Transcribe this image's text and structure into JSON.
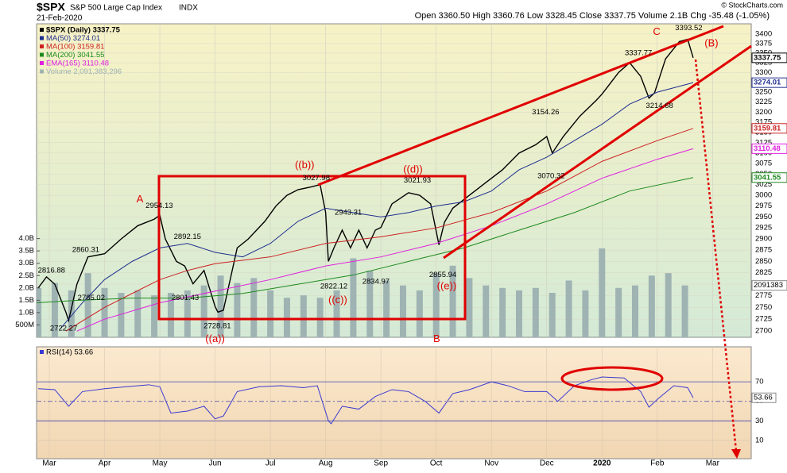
{
  "header": {
    "symbol": "$SPX",
    "name": "S&P 500 Large Cap Index",
    "exchange": "INDX",
    "date": "21-Feb-2020",
    "quote": "Open 3360.50  High 3360.76  Low 3328.45  Close 3337.75  Volume 2.1B  Chg -35.48 (-1.05%)",
    "credit": "© StockCharts.com"
  },
  "chart_data": [
    {
      "type": "line",
      "log_scale": true,
      "grid": true,
      "xlim": [
        2.77,
        15.7
      ],
      "xticks": [
        {
          "value": 3,
          "label": "Mar"
        },
        {
          "value": 4,
          "label": "Apr"
        },
        {
          "value": 5,
          "label": "May"
        },
        {
          "value": 6,
          "label": "Jun"
        },
        {
          "value": 7,
          "label": "Jul"
        },
        {
          "value": 8,
          "label": "Aug"
        },
        {
          "value": 9,
          "label": "Sep"
        },
        {
          "value": 10,
          "label": "Oct"
        },
        {
          "value": 11,
          "label": "Nov"
        },
        {
          "value": 12,
          "label": "Dec"
        },
        {
          "value": 13,
          "label": "2020"
        },
        {
          "value": 14,
          "label": "Feb"
        },
        {
          "value": 15,
          "label": "Mar"
        }
      ],
      "ylim": [
        2687,
        3427
      ],
      "yticks": [
        2700,
        2725,
        2750,
        2775,
        2800,
        2825,
        2850,
        2875,
        2900,
        2925,
        2950,
        2975,
        3000,
        3025,
        3050,
        3075,
        3100,
        3125,
        3150,
        3175,
        3200,
        3225,
        3250,
        3275,
        3300,
        3325,
        3350,
        3375,
        3400
      ],
      "y2lim": [
        0,
        12.7
      ],
      "y2ticks": [
        {
          "value": 0.5,
          "label": "500M"
        },
        {
          "value": 1,
          "label": "1.0B"
        },
        {
          "value": 1.5,
          "label": "1.5B"
        },
        {
          "value": 2,
          "label": "2.0B"
        },
        {
          "value": 2.5,
          "label": "2.5B"
        },
        {
          "value": 3,
          "label": "3.0B"
        },
        {
          "value": 3.5,
          "label": "3.5B"
        },
        {
          "value": 4,
          "label": "4.0B"
        }
      ],
      "series": [
        {
          "name": "$SPX (Daily) 3337.75",
          "color": "#000000",
          "width": 1.4,
          "x": [
            2.8,
            2.95,
            3.1,
            3.3,
            3.35,
            3.5,
            3.7,
            4.0,
            4.3,
            4.6,
            4.9,
            5.0,
            5.1,
            5.3,
            5.45,
            5.6,
            5.8,
            6.0,
            6.05,
            6.15,
            6.4,
            6.6,
            6.9,
            7.1,
            7.3,
            7.5,
            7.75,
            7.9,
            8.0,
            8.05,
            8.15,
            8.3,
            8.45,
            8.6,
            8.75,
            8.9,
            9.0,
            9.2,
            9.5,
            9.7,
            9.9,
            10.05,
            10.15,
            10.3,
            10.6,
            10.9,
            11.2,
            11.5,
            11.8,
            12.0,
            12.1,
            12.3,
            12.6,
            12.9,
            13.0,
            13.3,
            13.5,
            13.7,
            13.85,
            13.95,
            14.15,
            14.4,
            14.55,
            14.65
          ],
          "values": [
            2792,
            2816,
            2800,
            2740,
            2722,
            2800,
            2860,
            2867,
            2900,
            2930,
            2945,
            2954,
            2900,
            2850,
            2840,
            2801,
            2830,
            2752,
            2740,
            2744,
            2880,
            2900,
            2940,
            2975,
            3000,
            3013,
            3020,
            3025,
            2960,
            2850,
            2880,
            2920,
            2880,
            2920,
            2880,
            2920,
            2926,
            2980,
            3006,
            3000,
            2980,
            2887,
            2938,
            2970,
            3000,
            3030,
            3060,
            3100,
            3120,
            3140,
            3100,
            3140,
            3190,
            3230,
            3245,
            3300,
            3325,
            3290,
            3235,
            3248,
            3335,
            3380,
            3386,
            3337.75
          ]
        },
        {
          "name": "MA(50) 3274.01",
          "color": "#1f2f8f",
          "width": 1,
          "x": [
            3.2,
            3.6,
            4.0,
            4.5,
            5.0,
            5.5,
            6.0,
            6.5,
            7.0,
            7.5,
            8.0,
            8.5,
            9.0,
            9.5,
            10.0,
            10.5,
            11.0,
            11.5,
            12.0,
            12.5,
            13.0,
            13.5,
            14.0,
            14.65
          ],
          "values": [
            2705,
            2760,
            2810,
            2850,
            2880,
            2890,
            2870,
            2860,
            2890,
            2940,
            2970,
            2960,
            2950,
            2960,
            2975,
            2985,
            3010,
            3060,
            3090,
            3130,
            3170,
            3220,
            3250,
            3274.01
          ]
        },
        {
          "name": "MA(100) 3159.81",
          "color": "#cc2222",
          "width": 1,
          "x": [
            3.3,
            4.0,
            4.5,
            5.0,
            5.5,
            6.0,
            7.0,
            8.0,
            9.0,
            10.0,
            11.0,
            12.0,
            13.0,
            14.0,
            14.65
          ],
          "values": [
            2700,
            2750,
            2780,
            2810,
            2830,
            2845,
            2860,
            2890,
            2905,
            2925,
            2960,
            3010,
            3080,
            3130,
            3159.81
          ]
        },
        {
          "name": "MA(200) 3041.55",
          "color": "#1e8a1e",
          "width": 1,
          "x": [
            2.77,
            3.5,
            4.5,
            5.5,
            6.5,
            7.5,
            8.5,
            9.5,
            10.5,
            11.5,
            12.5,
            13.5,
            14.65
          ],
          "values": [
            2760,
            2765,
            2770,
            2770,
            2780,
            2800,
            2820,
            2850,
            2880,
            2920,
            2960,
            3010,
            3041.55
          ]
        },
        {
          "name": "EMA(165) 3110.48",
          "color": "#e020e0",
          "width": 1,
          "x": [
            3.5,
            4.0,
            5.0,
            6.0,
            7.0,
            8.0,
            9.0,
            10.0,
            11.0,
            12.0,
            13.0,
            14.0,
            14.65
          ],
          "values": [
            2700,
            2725,
            2760,
            2785,
            2810,
            2840,
            2860,
            2890,
            2930,
            2980,
            3040,
            3085,
            3110.48
          ]
        },
        {
          "name": "Volume 2,091,383,296",
          "type": "bar",
          "axis": "y2",
          "color": "#9fb3b3",
          "last_label": "2091383",
          "x": [
            2.8,
            3.1,
            3.4,
            3.7,
            4.0,
            4.3,
            4.6,
            4.9,
            5.2,
            5.5,
            5.8,
            6.1,
            6.4,
            6.7,
            7.0,
            7.3,
            7.6,
            7.9,
            8.2,
            8.5,
            8.8,
            9.1,
            9.4,
            9.7,
            10.0,
            10.3,
            10.6,
            10.9,
            11.2,
            11.5,
            11.8,
            12.1,
            12.4,
            12.7,
            13.0,
            13.3,
            13.6,
            13.9,
            14.2,
            14.5
          ],
          "values": [
            2.0,
            2.2,
            1.9,
            2.6,
            2.0,
            1.8,
            1.9,
            1.7,
            1.8,
            1.9,
            2.1,
            2.5,
            2.2,
            2.4,
            1.9,
            1.6,
            1.7,
            1.6,
            1.9,
            3.2,
            2.7,
            2.3,
            2.1,
            1.9,
            2.6,
            2.9,
            2.4,
            2.1,
            2.0,
            1.9,
            2.0,
            1.8,
            2.3,
            1.9,
            3.6,
            2.0,
            2.1,
            2.5,
            2.6,
            2.1
          ]
        }
      ],
      "axis_labels": [
        {
          "value": 3337.75,
          "label": "3337.75",
          "color": "#000000"
        },
        {
          "value": 3274.01,
          "label": "3274.01",
          "color": "#1f2f8f"
        },
        {
          "value": 3159.81,
          "label": "3159.81",
          "color": "#cc2222"
        },
        {
          "value": 3110.48,
          "label": "3110.48",
          "color": "#e020e0"
        },
        {
          "value": 3041.55,
          "label": "3041.55",
          "color": "#1e8a1e"
        }
      ],
      "price_labels": [
        {
          "text": "2816.88",
          "x": 3.04,
          "y": 2830
        },
        {
          "text": "2860.31",
          "x": 3.66,
          "y": 2875
        },
        {
          "text": "2785.02",
          "x": 3.76,
          "y": 2770
        },
        {
          "text": "2722.27",
          "x": 3.26,
          "y": 2705
        },
        {
          "text": "2954.13",
          "x": 4.99,
          "y": 2975
        },
        {
          "text": "2892.15",
          "x": 5.5,
          "y": 2905
        },
        {
          "text": "2801.43",
          "x": 5.46,
          "y": 2770
        },
        {
          "text": "2728.81",
          "x": 6.04,
          "y": 2710
        },
        {
          "text": "3027.98",
          "x": 7.83,
          "y": 3040
        },
        {
          "text": "2943.31",
          "x": 8.41,
          "y": 2960
        },
        {
          "text": "2822.12",
          "x": 8.15,
          "y": 2795
        },
        {
          "text": "2834.97",
          "x": 8.91,
          "y": 2805
        },
        {
          "text": "3021.93",
          "x": 9.66,
          "y": 3035
        },
        {
          "text": "2855.94",
          "x": 10.12,
          "y": 2820
        },
        {
          "text": "3154.26",
          "x": 11.98,
          "y": 3200
        },
        {
          "text": "3070.32",
          "x": 12.08,
          "y": 3045
        },
        {
          "text": "3337.77",
          "x": 13.66,
          "y": 3350
        },
        {
          "text": "3214.68",
          "x": 14.04,
          "y": 3215
        },
        {
          "text": "3393.52",
          "x": 14.57,
          "y": 3415
        }
      ],
      "wave_labels": [
        {
          "text": "A",
          "x": 4.64,
          "y": 2990
        },
        {
          "text": "((b))",
          "x": 7.62,
          "y": 3070
        },
        {
          "text": "((c))",
          "x": 8.22,
          "y": 2765
        },
        {
          "text": "((d))",
          "x": 9.58,
          "y": 3060
        },
        {
          "text": "((e))",
          "x": 10.19,
          "y": 2795
        },
        {
          "text": "((a))",
          "x": 6.0,
          "y": 2683
        },
        {
          "text": "B",
          "x": 10.01,
          "y": 2683
        },
        {
          "text": "C",
          "x": 13.99,
          "y": 3405
        },
        {
          "text": "(B)",
          "x": 14.98,
          "y": 3375
        }
      ]
    },
    {
      "type": "line",
      "title": "RSI(14) 53.66",
      "grid": true,
      "xlim": [
        2.77,
        15.7
      ],
      "ylim": [
        -8.8,
        105.9
      ],
      "yticks": [
        10,
        30,
        50,
        70
      ],
      "last_label": "53.66",
      "series": [
        {
          "name": "RSI(14)",
          "color": "#3a3ad0",
          "x": [
            2.8,
            3.1,
            3.35,
            3.6,
            4.0,
            4.4,
            4.8,
            5.0,
            5.2,
            5.5,
            5.8,
            6.0,
            6.15,
            6.4,
            6.8,
            7.2,
            7.6,
            7.85,
            8.05,
            8.1,
            8.3,
            8.6,
            8.9,
            9.2,
            9.5,
            9.8,
            10.05,
            10.3,
            10.6,
            11.0,
            11.3,
            11.6,
            12.0,
            12.2,
            12.5,
            12.8,
            13.0,
            13.4,
            13.7,
            13.85,
            14.0,
            14.3,
            14.55,
            14.65
          ],
          "values": [
            63,
            62,
            45,
            60,
            63,
            65,
            67,
            65,
            38,
            40,
            45,
            32,
            35,
            60,
            65,
            66,
            64,
            66,
            30,
            27,
            45,
            42,
            55,
            62,
            60,
            50,
            38,
            58,
            62,
            70,
            66,
            60,
            60,
            50,
            66,
            72,
            75,
            74,
            60,
            44,
            52,
            66,
            64,
            53.66
          ]
        }
      ]
    }
  ]
}
